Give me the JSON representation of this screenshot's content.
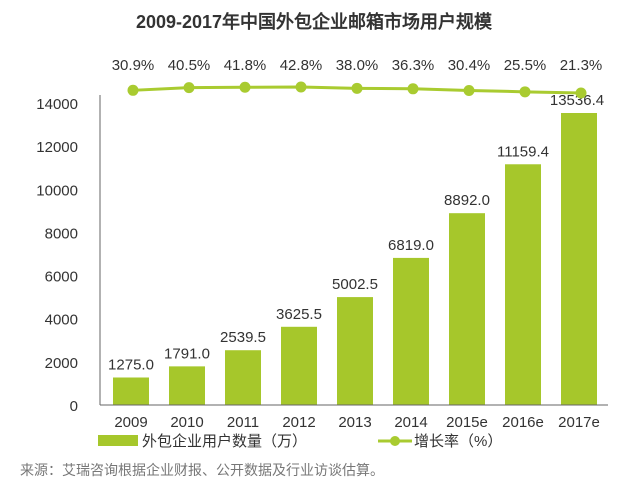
{
  "chart_data": {
    "type": "bar",
    "title": "2009-2017年中国外包企业邮箱市场用户规模",
    "categories": [
      "2009",
      "2010",
      "2011",
      "2012",
      "2013",
      "2014",
      "2015e",
      "2016e",
      "2017e"
    ],
    "series": [
      {
        "name": "外包企业用户数量（万）",
        "type": "bar",
        "values": [
          1275.0,
          1791.0,
          2539.5,
          3625.5,
          5002.5,
          6819.0,
          8892.0,
          11159.4,
          13536.4
        ],
        "labels": [
          "1275.0",
          "1791.0",
          "2539.5",
          "3625.5",
          "5002.5",
          "6819.0",
          "8892.0",
          "11159.4",
          "13536.4"
        ]
      },
      {
        "name": "增长率（%）",
        "type": "line",
        "values": [
          30.9,
          40.5,
          41.8,
          42.8,
          38.0,
          36.3,
          30.4,
          25.5,
          21.3
        ],
        "labels": [
          "30.9%",
          "40.5%",
          "41.8%",
          "42.8%",
          "38.0%",
          "36.3%",
          "30.4%",
          "25.5%",
          "21.3%"
        ]
      }
    ],
    "ylim": [
      0,
      14000
    ],
    "yticks": [
      "0",
      "2000",
      "4000",
      "6000",
      "8000",
      "10000",
      "12000",
      "14000"
    ],
    "xlabel": "",
    "ylabel": "",
    "legend": "bottom",
    "grid": false
  },
  "source": "来源：艾瑞咨询根据企业财报、公开数据及行业访谈估算。",
  "colors": {
    "bar": "#a6c72b",
    "line": "#a9cb30"
  }
}
